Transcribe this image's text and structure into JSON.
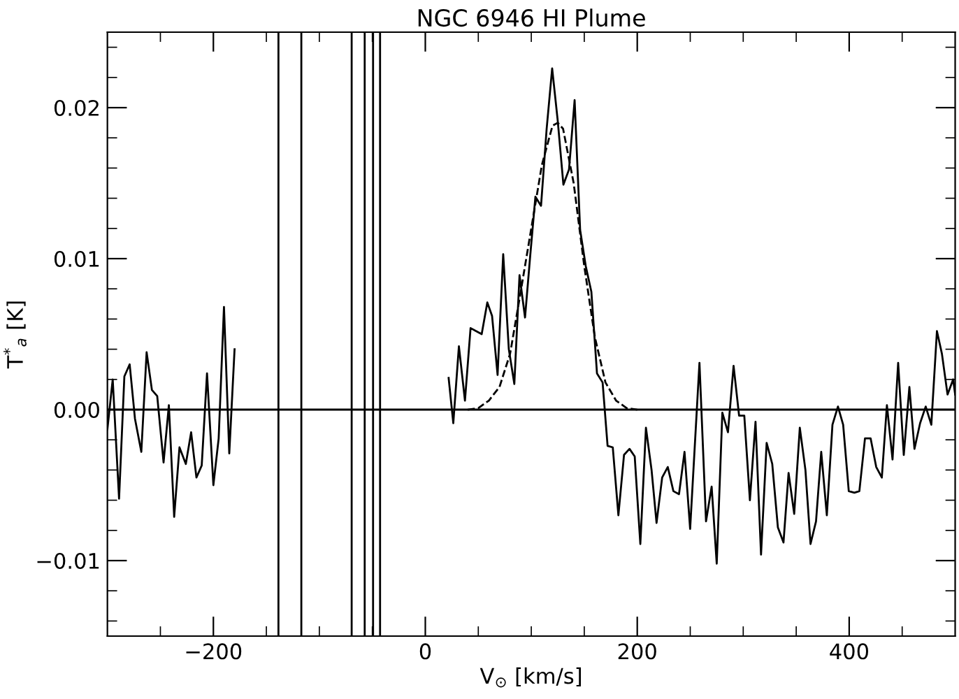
{
  "chart_data": {
    "type": "line",
    "title": "NGC 6946 HI Plume",
    "xlabel": "V$_{⊙}$ [km/s]",
    "ylabel": "T$^{*}$$_{a}$ [K]",
    "series": [
      {
        "color": "#000000",
        "line_style": "solid",
        "x": [
          -300,
          -295,
          -289,
          -284,
          -279,
          -274,
          -268,
          -263,
          -258,
          -253,
          -247,
          -242,
          -237,
          -232,
          -226,
          -221,
          -216,
          -211,
          -206,
          -200,
          -195,
          -190,
          -185,
          -180,
          -172.6,
          13.2,
          22,
          26.4,
          31.7,
          37.4,
          42.7,
          48,
          53.2,
          58.5,
          63,
          68.2,
          73.5,
          78.8,
          84,
          88.9,
          94.1,
          99,
          103.9,
          109.2,
          114.5,
          119.7,
          125,
          130.3,
          135.6,
          140.9,
          146.1,
          151.4,
          156.7,
          162,
          167.3,
          172,
          176.9,
          182.2,
          187.5,
          192.7,
          197.6,
          202.9,
          208.2,
          213.5,
          218.2,
          223.5,
          228.8,
          234.1,
          239.4,
          244.6,
          249.9,
          258.7,
          264.9,
          270.2,
          275,
          280.3,
          285.6,
          290.9,
          296.1,
          301,
          306.3,
          311.6,
          316.8,
          322.1,
          327.4,
          332.7,
          338,
          342.8,
          348.1,
          353.4,
          358.7,
          363.5,
          368.7,
          373.6,
          378.9,
          384.2,
          389.4,
          394.3,
          399.6,
          404.9,
          409.6,
          414.9,
          420.2,
          425.5,
          430.8,
          435.6,
          440.9,
          446.2,
          451.5,
          456.8,
          461.6,
          466.9,
          472.2,
          477.5,
          482.8,
          487.5,
          492.8,
          498.1,
          500
        ],
        "values": [
          -0.0013,
          0.002,
          -0.0059,
          0.0022,
          0.003,
          -0.0006,
          -0.0028,
          0.0038,
          0.0013,
          0.0009,
          -0.0035,
          0.0003,
          -0.0071,
          -0.0025,
          -0.0036,
          -0.0015,
          -0.0045,
          -0.0037,
          0.0024,
          -0.005,
          -0.0019,
          0.0068,
          -0.0029,
          0.004,
          null,
          null,
          0.0021,
          -0.0009,
          0.0042,
          0.0006,
          0.0054,
          0.0052,
          0.005,
          0.0071,
          0.0062,
          0.0023,
          0.0103,
          0.004,
          0.0017,
          0.0089,
          0.0061,
          0.0102,
          0.0141,
          0.0135,
          0.0186,
          0.0226,
          0.0191,
          0.0149,
          0.0159,
          0.0205,
          0.0119,
          0.0095,
          0.0078,
          0.0024,
          0.0018,
          -0.0024,
          -0.0025,
          -0.007,
          -0.003,
          -0.0026,
          -0.0031,
          -0.0089,
          -0.0012,
          -0.004,
          -0.0075,
          -0.0045,
          -0.0038,
          -0.0054,
          -0.0056,
          -0.0028,
          -0.0079,
          0.0031,
          -0.0074,
          -0.0051,
          -0.0102,
          -0.0002,
          -0.0015,
          0.0029,
          -0.0004,
          -0.0004,
          -0.006,
          -0.0008,
          -0.0096,
          -0.0022,
          -0.0036,
          -0.0078,
          -0.0088,
          -0.0042,
          -0.0069,
          -0.0012,
          -0.004,
          -0.0089,
          -0.0074,
          -0.0028,
          -0.007,
          -0.001,
          0.0002,
          -0.001,
          -0.0054,
          -0.0055,
          -0.0054,
          -0.0019,
          -0.0019,
          -0.0038,
          -0.0045,
          0.0003,
          -0.0033,
          0.0031,
          -0.003,
          0.0015,
          -0.0026,
          -0.0009,
          0.0002,
          -0.001,
          0.0052,
          0.0037,
          0.001,
          0.002,
          0.001
        ]
      },
      {
        "color": "#000000",
        "line_style": "dashed",
        "x": [
          40,
          50,
          60,
          70,
          80,
          90,
          100,
          110,
          120,
          125,
          130,
          140,
          150,
          160,
          170,
          180,
          190,
          200
        ],
        "values": [
          0.0,
          0.0001,
          0.0006,
          0.0015,
          0.0037,
          0.0078,
          0.012,
          0.0162,
          0.0188,
          0.019,
          0.0186,
          0.015,
          0.0095,
          0.0048,
          0.0018,
          0.0006,
          0.0001,
          0.0
        ]
      }
    ],
    "ref_lines": [
      {
        "axis": "y",
        "value": 0,
        "color": "#000000",
        "line_style": "solid"
      },
      {
        "axis": "x",
        "value": -138.6,
        "color": "#000000",
        "line_style": "solid"
      },
      {
        "axis": "x",
        "value": -117,
        "color": "#000000",
        "line_style": "solid"
      },
      {
        "axis": "x",
        "value": -69.5,
        "color": "#000000",
        "line_style": "solid"
      },
      {
        "axis": "x",
        "value": -57.2,
        "color": "#000000",
        "line_style": "solid"
      },
      {
        "axis": "x",
        "value": -49.3,
        "color": "#000000",
        "line_style": "solid"
      },
      {
        "axis": "x",
        "value": -42.7,
        "color": "#000000",
        "line_style": "solid"
      }
    ],
    "xlim": [
      -300,
      500
    ],
    "ylim": [
      -0.015,
      0.025
    ],
    "xticks": [
      {
        "value": -250,
        "label": null
      },
      {
        "value": -200,
        "label": "−200"
      },
      {
        "value": -150,
        "label": null
      },
      {
        "value": -100,
        "label": null
      },
      {
        "value": -50,
        "label": null
      },
      {
        "value": 0,
        "label": "0"
      },
      {
        "value": 50,
        "label": null
      },
      {
        "value": 100,
        "label": null
      },
      {
        "value": 150,
        "label": null
      },
      {
        "value": 200,
        "label": "200"
      },
      {
        "value": 250,
        "label": null
      },
      {
        "value": 300,
        "label": null
      },
      {
        "value": 350,
        "label": null
      },
      {
        "value": 400,
        "label": "400"
      },
      {
        "value": 450,
        "label": null
      }
    ],
    "yticks": [
      {
        "value": -0.014,
        "label": null
      },
      {
        "value": -0.012,
        "label": null
      },
      {
        "value": -0.01,
        "label": "−0.01"
      },
      {
        "value": -0.008,
        "label": null
      },
      {
        "value": -0.006,
        "label": null
      },
      {
        "value": -0.004,
        "label": null
      },
      {
        "value": -0.002,
        "label": null
      },
      {
        "value": 0,
        "label": "0.00"
      },
      {
        "value": 0.002,
        "label": null
      },
      {
        "value": 0.004,
        "label": null
      },
      {
        "value": 0.006,
        "label": null
      },
      {
        "value": 0.008,
        "label": null
      },
      {
        "value": 0.01,
        "label": "0.01"
      },
      {
        "value": 0.012,
        "label": null
      },
      {
        "value": 0.014,
        "label": null
      },
      {
        "value": 0.016,
        "label": null
      },
      {
        "value": 0.018,
        "label": null
      },
      {
        "value": 0.02,
        "label": "0.02"
      },
      {
        "value": 0.022,
        "label": null
      },
      {
        "value": 0.024,
        "label": null
      }
    ],
    "grid": false,
    "legend": false,
    "marker": "none"
  }
}
